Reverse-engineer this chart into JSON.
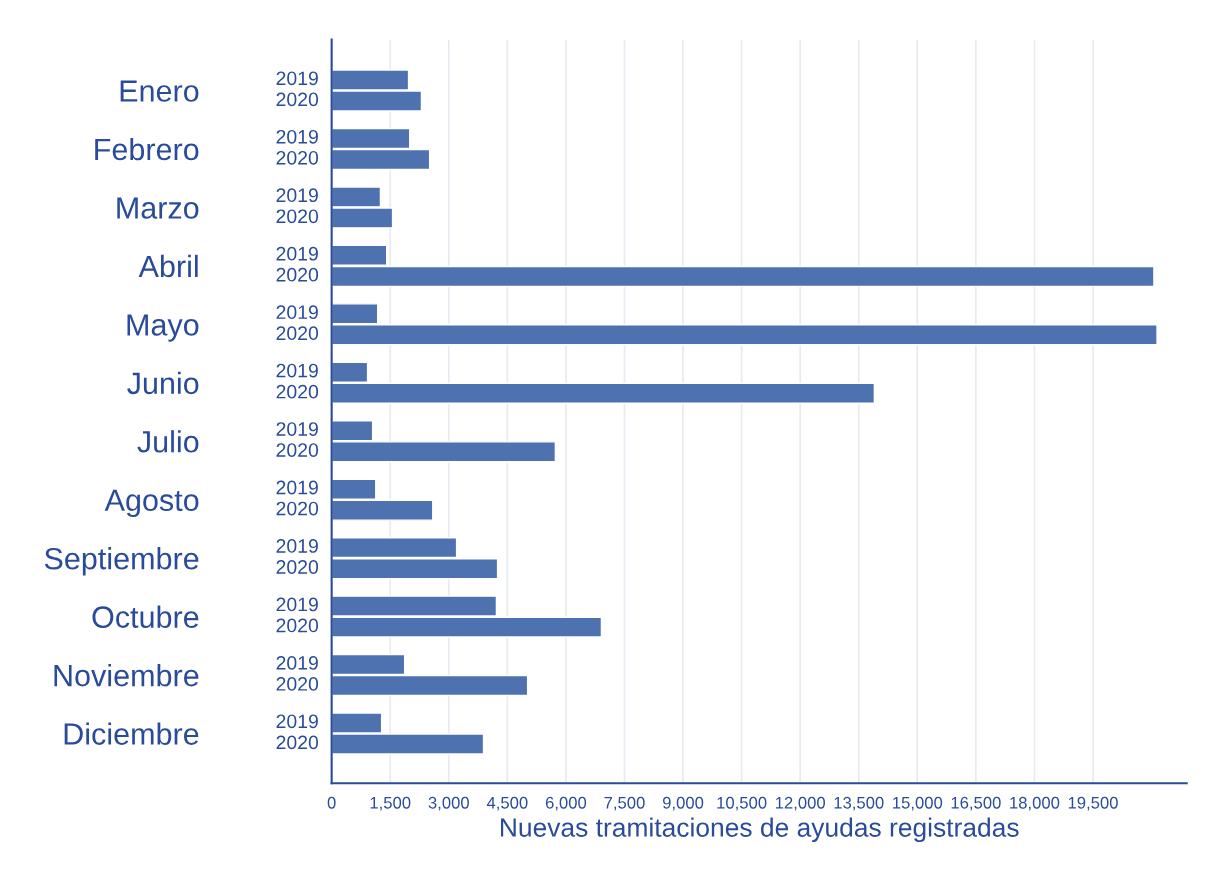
{
  "chart_data": {
    "type": "bar",
    "orientation": "horizontal",
    "xlabel": "Nuevas tramitaciones de ayudas registradas",
    "categories": [
      "Enero",
      "Febrero",
      "Marzo",
      "Abril",
      "Mayo",
      "Junio",
      "Julio",
      "Agosto",
      "Septiembre",
      "Octubre",
      "Noviembre",
      "Diciembre"
    ],
    "series": [
      {
        "name": "2019",
        "color": "#4e72b0",
        "values": [
          1970,
          2000,
          1250,
          1410,
          1180,
          920,
          1050,
          1130,
          3200,
          4220,
          1870,
          1280
        ]
      },
      {
        "name": "2020",
        "color": "#4e72b0",
        "values": [
          2300,
          2510,
          1560,
          21060,
          21140,
          13900,
          5730,
          2590,
          4250,
          6910,
          5020,
          3890
        ]
      }
    ],
    "xlim": [
      0,
      21900
    ],
    "xticks": [
      0,
      {
        "value": 1500,
        "label": "1,500"
      },
      {
        "value": 3000,
        "label": "3,000"
      },
      {
        "value": 4500,
        "label": "4,500"
      },
      {
        "value": 6000,
        "label": "6,000"
      },
      {
        "value": 7500,
        "label": "7,500"
      },
      {
        "value": 9000,
        "label": "9,000"
      },
      {
        "value": 10500,
        "label": "10,500"
      },
      {
        "value": 12000,
        "label": "12,000"
      },
      {
        "value": 13500,
        "label": "13,500"
      },
      {
        "value": 15000,
        "label": "15,000"
      },
      {
        "value": 16500,
        "label": "16,500"
      },
      {
        "value": 18000,
        "label": "18,000"
      },
      {
        "value": 19500,
        "label": "19,500"
      }
    ],
    "grid": "x",
    "legend": false
  }
}
